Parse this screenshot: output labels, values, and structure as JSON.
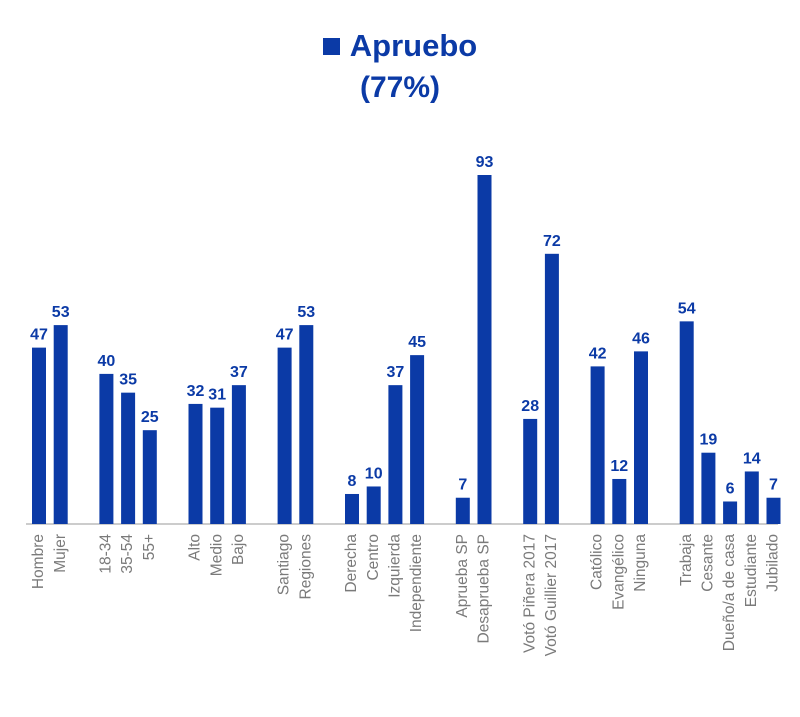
{
  "legend": {
    "label": "Apruebo",
    "subtitle": "(77%)"
  },
  "colors": {
    "bar": "#0b3aa6",
    "axis": "#9a9a9a",
    "label": "#7a7a7a"
  },
  "chart_data": {
    "type": "bar",
    "title": "",
    "xlabel": "",
    "ylabel": "",
    "ylim": [
      0,
      93
    ],
    "grid": false,
    "legend_position": "top-center",
    "series": [
      {
        "name": "Apruebo",
        "categories": [
          "Hombre",
          "Mujer",
          "18-34",
          "35-54",
          "55+",
          "Alto",
          "Medio",
          "Bajo",
          "Santiago",
          "Regiones",
          "Derecha",
          "Centro",
          "Izquierda",
          "Independiente",
          "Aprueba SP",
          "Desaprueba SP",
          "Votó Piñera 2017",
          "Votó Guillier 2017",
          "Católico",
          "Evangélico",
          "Ninguna",
          "Trabaja",
          "Cesante",
          "Dueño/a de casa",
          "Estudiante",
          "Jubilado"
        ],
        "values": [
          47,
          53,
          40,
          35,
          25,
          32,
          31,
          37,
          47,
          53,
          8,
          10,
          37,
          45,
          7,
          93,
          28,
          72,
          42,
          12,
          46,
          54,
          19,
          6,
          14,
          7
        ]
      }
    ],
    "groups": [
      2,
      3,
      3,
      2,
      4,
      2,
      2,
      3,
      5
    ]
  }
}
